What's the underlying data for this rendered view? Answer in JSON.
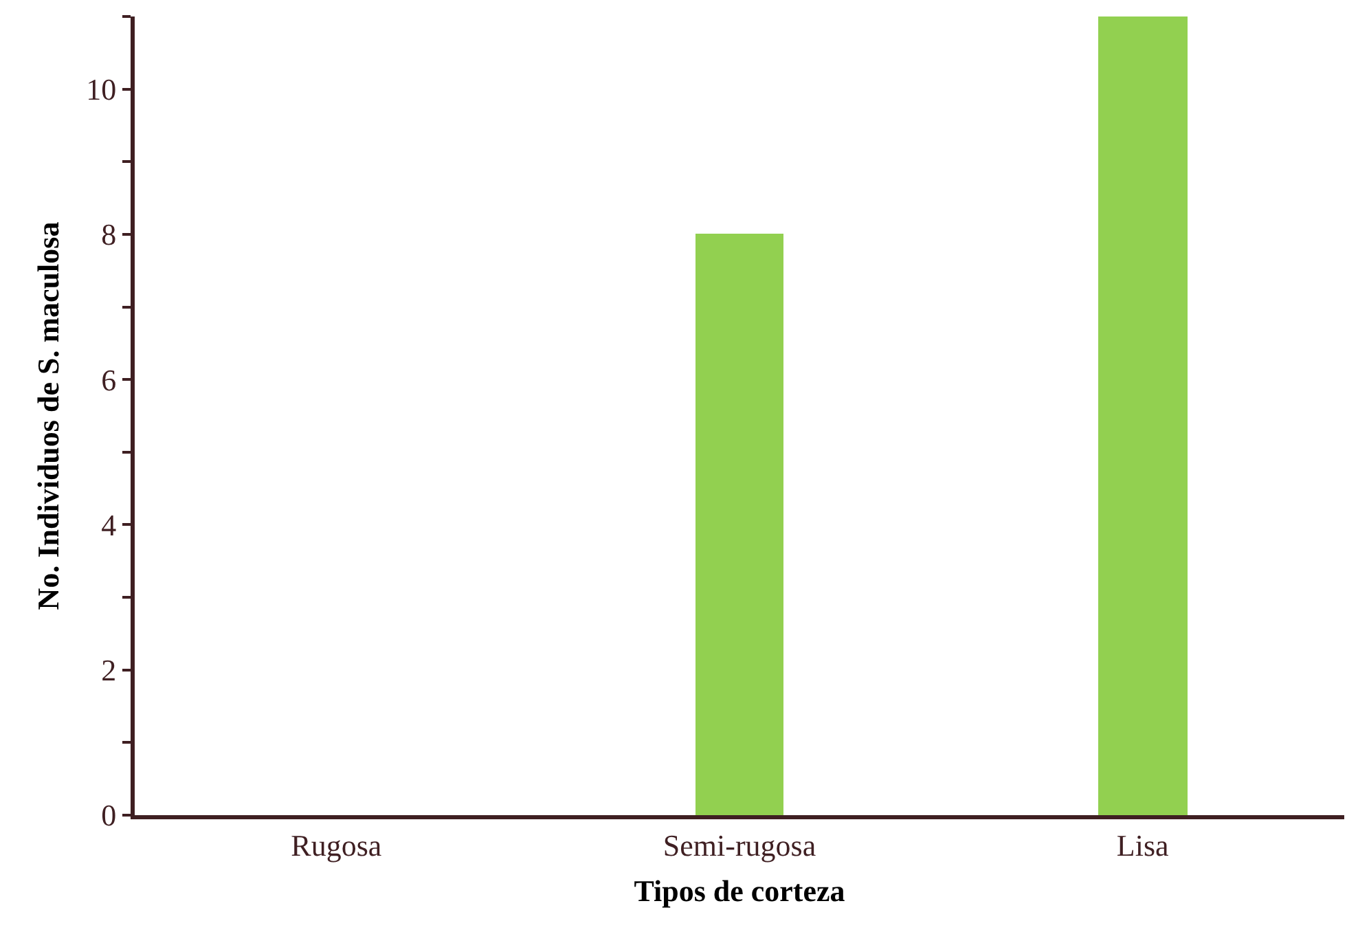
{
  "chart_data": {
    "type": "bar",
    "categories": [
      "Rugosa",
      "Semi-rugosa",
      "Lisa"
    ],
    "values": [
      0,
      8,
      11
    ],
    "color": "#92d050",
    "xlabel": "Tipos de corteza",
    "ylabel": "No. Individuos de S. maculosa",
    "ylim": [
      0,
      11
    ],
    "yticks": [
      0,
      {
        "value": 1,
        "label": null
      },
      2,
      {
        "value": 3,
        "label": null
      },
      4,
      {
        "value": 5,
        "label": null
      },
      6,
      {
        "value": 7,
        "label": null
      },
      8,
      {
        "value": 9,
        "label": null
      },
      10,
      {
        "value": 11,
        "label": null
      }
    ],
    "grid": false,
    "legend": false
  }
}
